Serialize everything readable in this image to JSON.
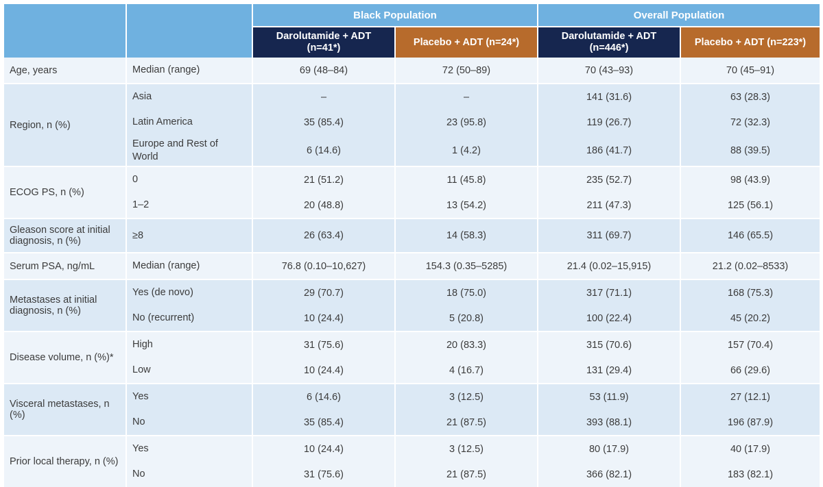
{
  "header": {
    "groups": [
      {
        "label": "Black Population"
      },
      {
        "label": "Overall Population"
      }
    ],
    "arms": [
      {
        "label": "Darolutamide + ADT\n(n=41*)",
        "color": "#16264f"
      },
      {
        "label": "Placebo + ADT (n=24*)",
        "color": "#b76b2c"
      },
      {
        "label": "Darolutamide + ADT\n(n=446*)",
        "color": "#16264f"
      },
      {
        "label": "Placebo + ADT (n=223*)",
        "color": "#b76b2c"
      }
    ]
  },
  "colors": {
    "header_blue": "#6fb1e0",
    "band_light": "#eef4fa",
    "band_dark": "#dce9f5"
  },
  "groups": [
    {
      "characteristic": "Age, years",
      "rows": [
        {
          "sub": "Median (range)",
          "values": [
            "69 (48–84)",
            "72 (50–89)",
            "70 (43–93)",
            "70 (45–91)"
          ]
        }
      ]
    },
    {
      "characteristic": "Region, n (%)",
      "rows": [
        {
          "sub": "Asia",
          "values": [
            "–",
            "–",
            "141 (31.6)",
            "63 (28.3)"
          ]
        },
        {
          "sub": "Latin America",
          "values": [
            "35 (85.4)",
            "23 (95.8)",
            "119 (26.7)",
            "72 (32.3)"
          ]
        },
        {
          "sub": "Europe and Rest of World",
          "values": [
            "6 (14.6)",
            "1 (4.2)",
            "186 (41.7)",
            "88 (39.5)"
          ]
        }
      ]
    },
    {
      "characteristic": "ECOG PS, n (%)",
      "rows": [
        {
          "sub": "0",
          "values": [
            "21 (51.2)",
            "11 (45.8)",
            "235 (52.7)",
            "98 (43.9)"
          ]
        },
        {
          "sub": "1–2",
          "values": [
            "20 (48.8)",
            "13 (54.2)",
            "211 (47.3)",
            "125 (56.1)"
          ]
        }
      ]
    },
    {
      "characteristic": "Gleason score at initial diagnosis, n (%)",
      "rows": [
        {
          "sub": "≥8",
          "values": [
            "26 (63.4)",
            "14 (58.3)",
            "311 (69.7)",
            "146 (65.5)"
          ]
        }
      ]
    },
    {
      "characteristic": "Serum PSA, ng/mL",
      "rows": [
        {
          "sub": "Median (range)",
          "values": [
            "76.8 (0.10–10,627)",
            "154.3 (0.35–5285)",
            "21.4 (0.02–15,915)",
            "21.2 (0.02–8533)"
          ]
        }
      ]
    },
    {
      "characteristic": "Metastases at initial diagnosis, n (%)",
      "rows": [
        {
          "sub": "Yes (de novo)",
          "values": [
            "29 (70.7)",
            "18 (75.0)",
            "317 (71.1)",
            "168 (75.3)"
          ]
        },
        {
          "sub": "No (recurrent)",
          "values": [
            "10 (24.4)",
            "5 (20.8)",
            "100 (22.4)",
            "45 (20.2)"
          ]
        }
      ]
    },
    {
      "characteristic": "Disease volume, n (%)*",
      "rows": [
        {
          "sub": "High",
          "values": [
            "31 (75.6)",
            "20 (83.3)",
            "315 (70.6)",
            "157 (70.4)"
          ]
        },
        {
          "sub": "Low",
          "values": [
            "10 (24.4)",
            "4 (16.7)",
            "131 (29.4)",
            "66 (29.6)"
          ]
        }
      ]
    },
    {
      "characteristic": "Visceral metastases, n (%)",
      "rows": [
        {
          "sub": "Yes",
          "values": [
            "6 (14.6)",
            "3 (12.5)",
            "53 (11.9)",
            "27 (12.1)"
          ]
        },
        {
          "sub": "No",
          "values": [
            "35 (85.4)",
            "21 (87.5)",
            "393 (88.1)",
            "196 (87.9)"
          ]
        }
      ]
    },
    {
      "characteristic": "Prior local therapy, n (%)",
      "rows": [
        {
          "sub": "Yes",
          "values": [
            "10 (24.4)",
            "3 (12.5)",
            "80 (17.9)",
            "40 (17.9)"
          ]
        },
        {
          "sub": "No",
          "values": [
            "31 (75.6)",
            "21 (87.5)",
            "366 (82.1)",
            "183 (82.1)"
          ]
        }
      ]
    }
  ]
}
